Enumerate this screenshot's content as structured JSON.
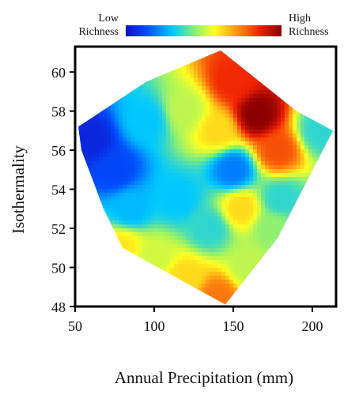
{
  "chart_data": {
    "type": "heatmap",
    "title": "",
    "xlabel": "Annual Precipitation (mm)",
    "ylabel": "Isothermality",
    "xlim": [
      50,
      215
    ],
    "ylim": [
      48,
      61.3
    ],
    "x_ticks": [
      50,
      100,
      150,
      200
    ],
    "y_ticks": [
      48,
      50,
      52,
      54,
      56,
      58,
      60
    ],
    "grid": false,
    "color_scale": {
      "low_label": "Low Richness",
      "high_label": "High Richness",
      "colors": [
        "#1010c8",
        "#0050ff",
        "#00c8ff",
        "#90f070",
        "#ffff20",
        "#ff9010",
        "#f02000",
        "#8b0000"
      ]
    },
    "hull": [
      [
        52,
        57.2
      ],
      [
        95,
        59.5
      ],
      [
        142,
        61.1
      ],
      [
        190,
        58
      ],
      [
        213,
        57
      ],
      [
        178,
        51.5
      ],
      [
        145,
        48.1
      ],
      [
        80,
        51
      ],
      [
        68,
        53
      ],
      [
        54,
        56
      ]
    ],
    "surface_points": [
      {
        "x": 165,
        "y": 57.8,
        "value": 1.0
      },
      {
        "x": 150,
        "y": 59.5,
        "value": 0.85
      },
      {
        "x": 178,
        "y": 56,
        "value": 0.8
      },
      {
        "x": 140,
        "y": 57,
        "value": 0.62
      },
      {
        "x": 150,
        "y": 55,
        "value": 0.2
      },
      {
        "x": 155,
        "y": 53,
        "value": 0.62
      },
      {
        "x": 120,
        "y": 58,
        "value": 0.5
      },
      {
        "x": 115,
        "y": 53.5,
        "value": 0.3
      },
      {
        "x": 175,
        "y": 52,
        "value": 0.45
      },
      {
        "x": 100,
        "y": 50.5,
        "value": 0.52
      },
      {
        "x": 80,
        "y": 51,
        "value": 0.6
      },
      {
        "x": 140,
        "y": 48.5,
        "value": 0.75
      },
      {
        "x": 120,
        "y": 49.5,
        "value": 0.62
      },
      {
        "x": 95,
        "y": 57.5,
        "value": 0.3
      },
      {
        "x": 60,
        "y": 56.5,
        "value": 0.05
      },
      {
        "x": 75,
        "y": 55,
        "value": 0.12
      },
      {
        "x": 85,
        "y": 53,
        "value": 0.28
      },
      {
        "x": 205,
        "y": 57,
        "value": 0.35
      },
      {
        "x": 135,
        "y": 52,
        "value": 0.35
      },
      {
        "x": 160,
        "y": 50,
        "value": 0.5
      },
      {
        "x": 180,
        "y": 53.5,
        "value": 0.35
      }
    ]
  }
}
